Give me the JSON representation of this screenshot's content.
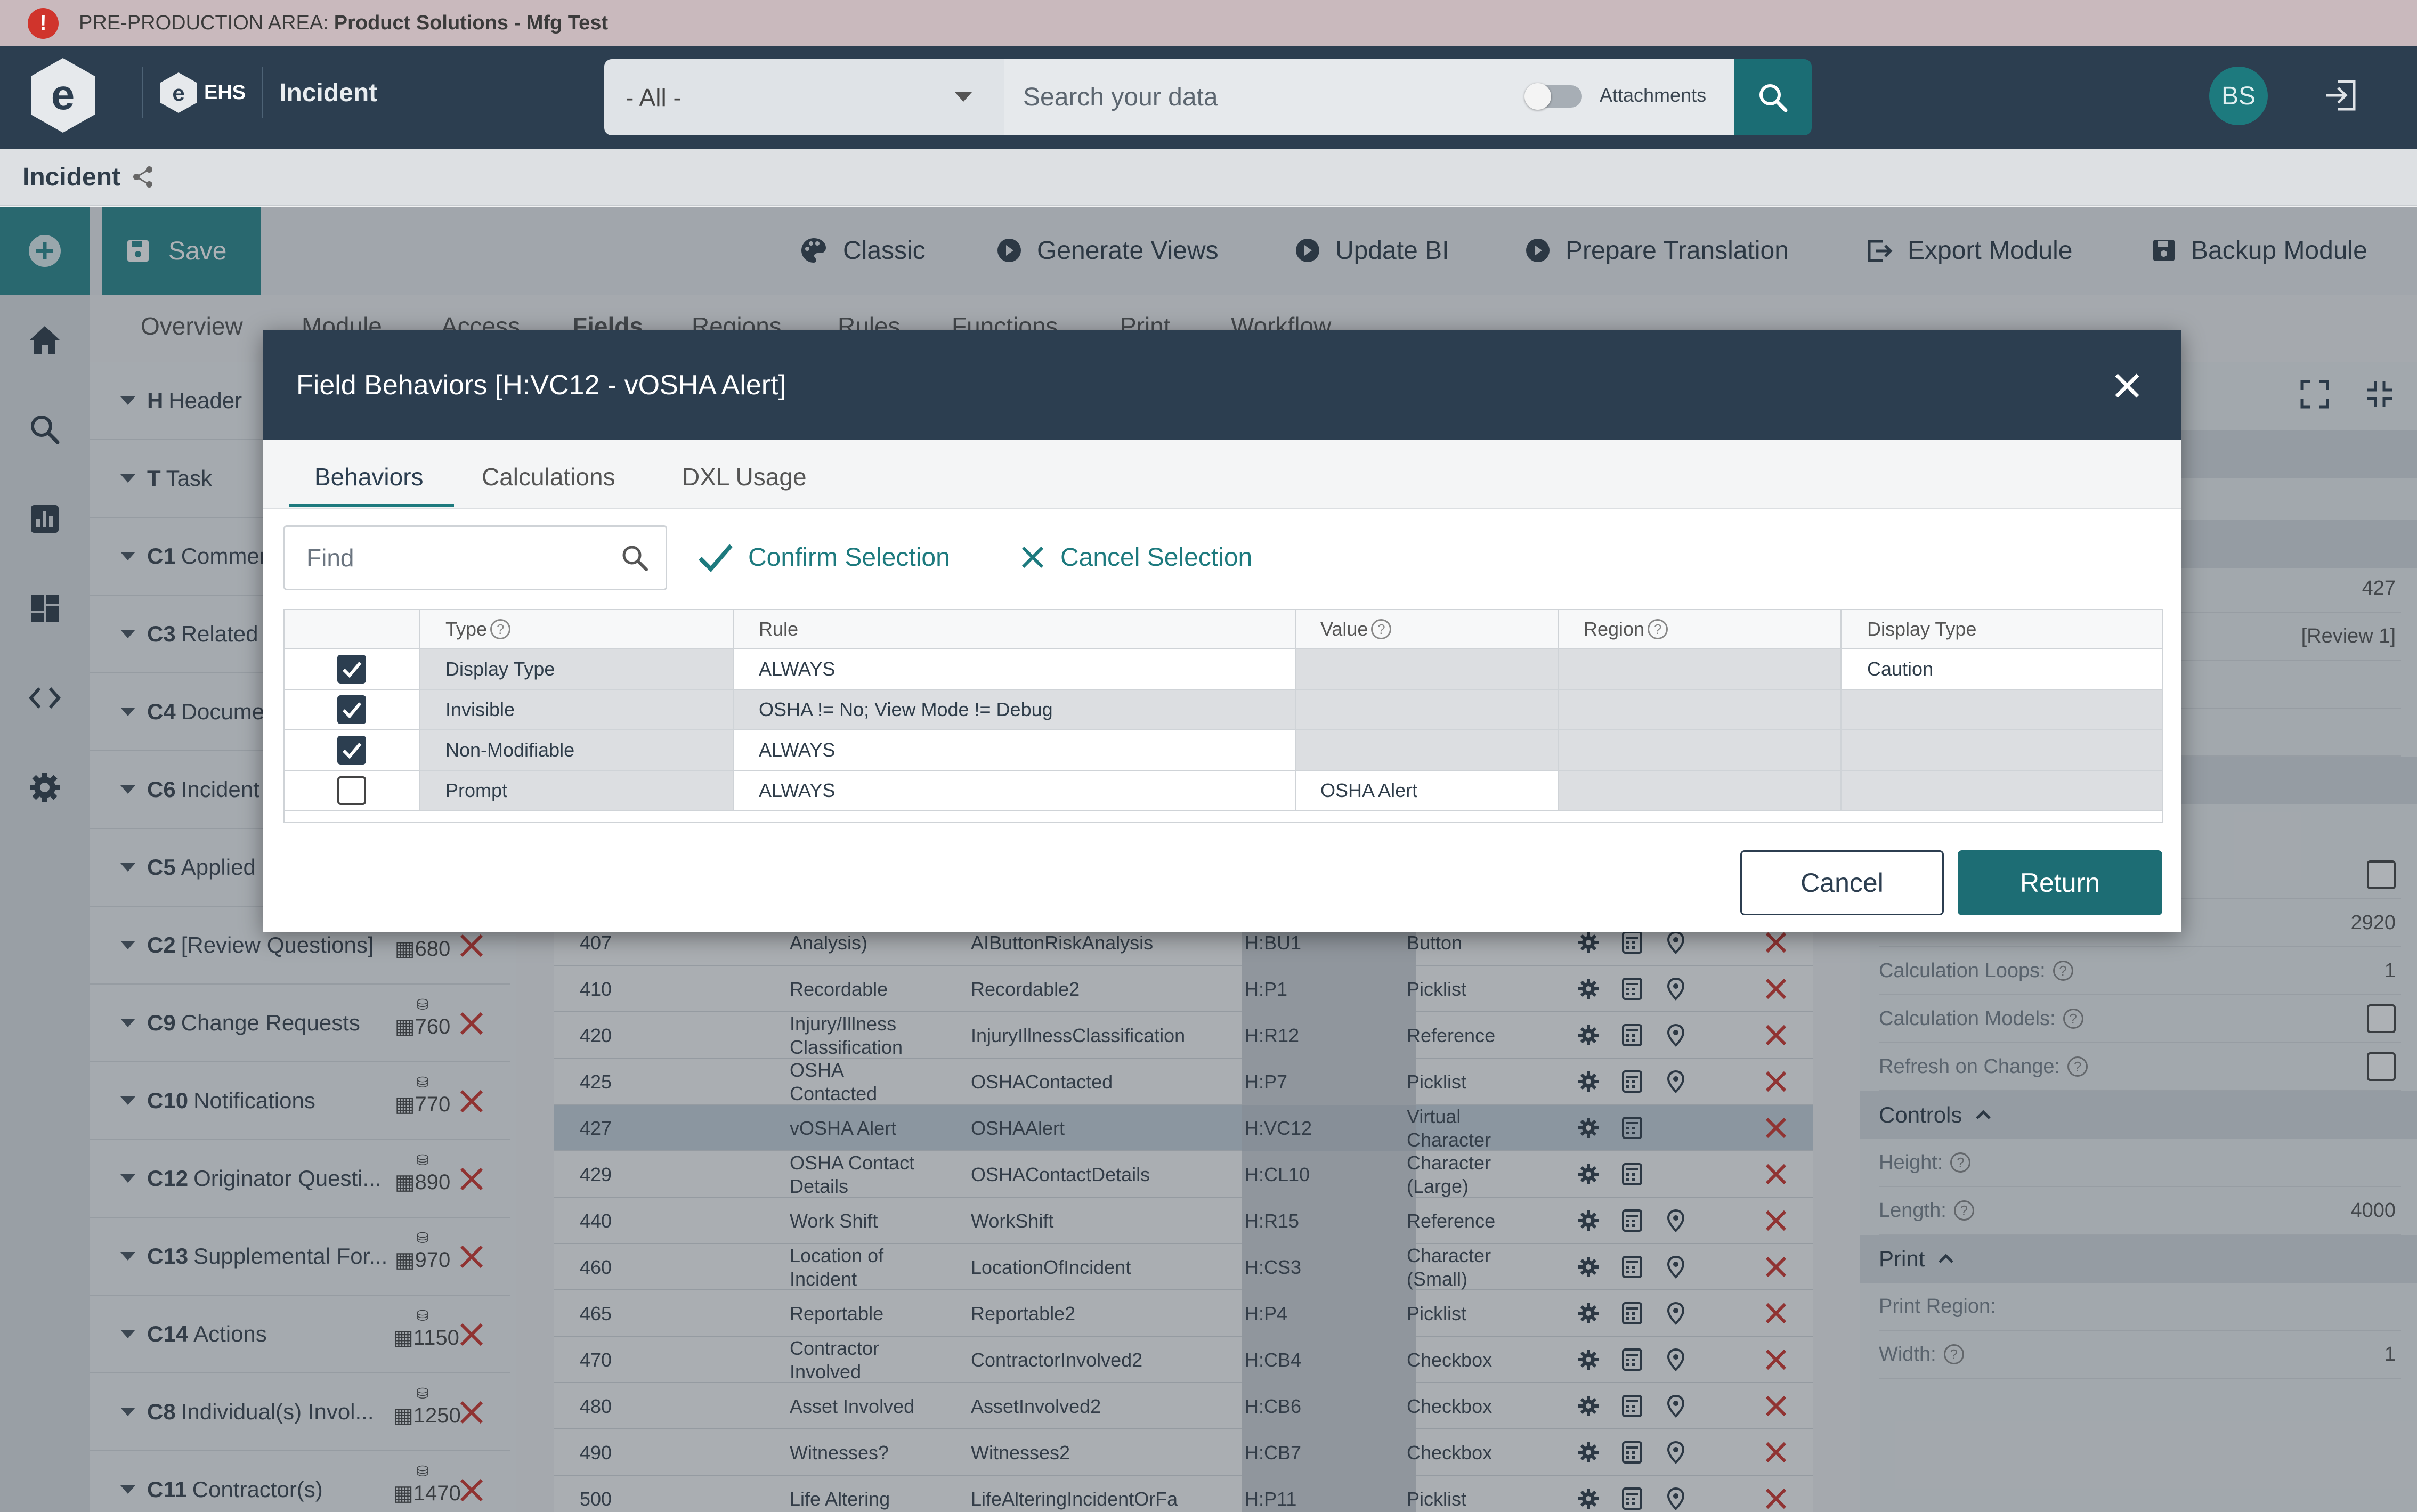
{
  "banner": {
    "prefix": "PRE-PRODUCTION AREA:",
    "name": "Product Solutions - Mfg Test"
  },
  "header": {
    "app_short": "EHS",
    "module": "Incident",
    "scope": "- All -",
    "search_placeholder": "Search your data",
    "attachments_label": "Attachments",
    "avatar_initials": "BS"
  },
  "breadcrumb": {
    "title": "Incident"
  },
  "toolbar": {
    "save": "Save",
    "classic": "Classic",
    "generate_views": "Generate Views",
    "update_bi": "Update BI",
    "prepare_translation": "Prepare Translation",
    "export_module": "Export Module",
    "backup_module": "Backup Module"
  },
  "field_tabs": [
    "Overview",
    "Module",
    "Access",
    "Fields",
    "Regions",
    "Rules",
    "Functions",
    "Print",
    "Workflow"
  ],
  "regions": [
    {
      "id": "H",
      "name": "Header",
      "count": ""
    },
    {
      "id": "T",
      "name": "Task",
      "count": ""
    },
    {
      "id": "C1",
      "name": "Comments",
      "count": ""
    },
    {
      "id": "C3",
      "name": "Related",
      "count": ""
    },
    {
      "id": "C4",
      "name": "Documents",
      "count": ""
    },
    {
      "id": "C6",
      "name": "Incident",
      "count": ""
    },
    {
      "id": "C5",
      "name": "Applied",
      "count": ""
    },
    {
      "id": "C2",
      "name": "[Review Questions]",
      "count": "680"
    },
    {
      "id": "C9",
      "name": "Change Requests",
      "count": "760"
    },
    {
      "id": "C10",
      "name": "Notifications",
      "count": "770"
    },
    {
      "id": "C12",
      "name": "Originator Questi...",
      "count": "890"
    },
    {
      "id": "C13",
      "name": "Supplemental For...",
      "count": "970"
    },
    {
      "id": "C14",
      "name": "Actions",
      "count": "1150"
    },
    {
      "id": "C8",
      "name": "Individual(s) Invol...",
      "count": "1250"
    },
    {
      "id": "C11",
      "name": "Contractor(s)",
      "count": "1470"
    }
  ],
  "grid_rows": [
    {
      "seq": "407",
      "label": "Analysis)",
      "name": "AIButtonRiskAnalysis",
      "code": "H:BU1",
      "type": "Button",
      "sel": false
    },
    {
      "seq": "410",
      "label": "Recordable",
      "name": "Recordable2",
      "code": "H:P1",
      "type": "Picklist",
      "sel": false
    },
    {
      "seq": "420",
      "label": "Injury/Illness Classification",
      "name": "InjuryIllnessClassification",
      "code": "H:R12",
      "type": "Reference",
      "sel": false
    },
    {
      "seq": "425",
      "label": "OSHA Contacted",
      "name": "OSHAContacted",
      "code": "H:P7",
      "type": "Picklist",
      "sel": false
    },
    {
      "seq": "427",
      "label": "vOSHA Alert",
      "name": "OSHAAlert",
      "code": "H:VC12",
      "type": "Virtual Character",
      "sel": true
    },
    {
      "seq": "429",
      "label": "OSHA Contact Details",
      "name": "OSHAContactDetails",
      "code": "H:CL10",
      "type": "Character (Large)",
      "sel": false
    },
    {
      "seq": "440",
      "label": "Work Shift",
      "name": "WorkShift",
      "code": "H:R15",
      "type": "Reference",
      "sel": false
    },
    {
      "seq": "460",
      "label": "Location of Incident",
      "name": "LocationOfIncident",
      "code": "H:CS3",
      "type": "Character (Small)",
      "sel": false
    },
    {
      "seq": "465",
      "label": "Reportable",
      "name": "Reportable2",
      "code": "H:P4",
      "type": "Picklist",
      "sel": false
    },
    {
      "seq": "470",
      "label": "Contractor Involved",
      "name": "ContractorInvolved2",
      "code": "H:CB4",
      "type": "Checkbox",
      "sel": false
    },
    {
      "seq": "480",
      "label": "Asset Involved",
      "name": "AssetInvolved2",
      "code": "H:CB6",
      "type": "Checkbox",
      "sel": false
    },
    {
      "seq": "490",
      "label": "Witnesses?",
      "name": "Witnesses2",
      "code": "H:CB7",
      "type": "Checkbox",
      "sel": false
    },
    {
      "seq": "500",
      "label": "Life Altering",
      "name": "LifeAlteringIncidentOrFa",
      "code": "H:P11",
      "type": "Picklist",
      "sel": false
    }
  ],
  "right_panel": {
    "v427": "427",
    "review": "[Review 1]",
    "v2920": "2920",
    "calc_loops_label": "Calculation Loops:",
    "calc_loops": "1",
    "calc_models_label": "Calculation Models:",
    "refresh_label": "Refresh on Change:",
    "controls": "Controls",
    "height_label": "Height:",
    "length_label": "Length:",
    "length": "4000",
    "print": "Print",
    "print_region_label": "Print Region:",
    "width_label": "Width:",
    "width": "1"
  },
  "modal": {
    "title": "Field Behaviors [H:VC12 - vOSHA Alert]",
    "tabs": [
      "Behaviors",
      "Calculations",
      "DXL Usage"
    ],
    "find_placeholder": "Find",
    "confirm": "Confirm Selection",
    "cancel_selection": "Cancel Selection",
    "columns": [
      "Type",
      "Rule",
      "Value",
      "Region",
      "Display Type"
    ],
    "rows": [
      {
        "checked": true,
        "type": "Display Type",
        "rule": "ALWAYS",
        "value": "",
        "region": "",
        "display": "Caution"
      },
      {
        "checked": true,
        "type": "Invisible",
        "rule": "OSHA != No; View Mode != Debug",
        "value": "",
        "region": "",
        "display": ""
      },
      {
        "checked": true,
        "type": "Non-Modifiable",
        "rule": "ALWAYS",
        "value": "",
        "region": "",
        "display": ""
      },
      {
        "checked": false,
        "type": "Prompt",
        "rule": "ALWAYS",
        "value": "OSHA Alert",
        "region": "",
        "display": ""
      }
    ],
    "cancel": "Cancel",
    "return": "Return"
  },
  "colors": {
    "topbar": "#2c3e50",
    "accent": "#1d7a7e",
    "delete": "#d0342c",
    "banner": "#c9b9bd"
  }
}
